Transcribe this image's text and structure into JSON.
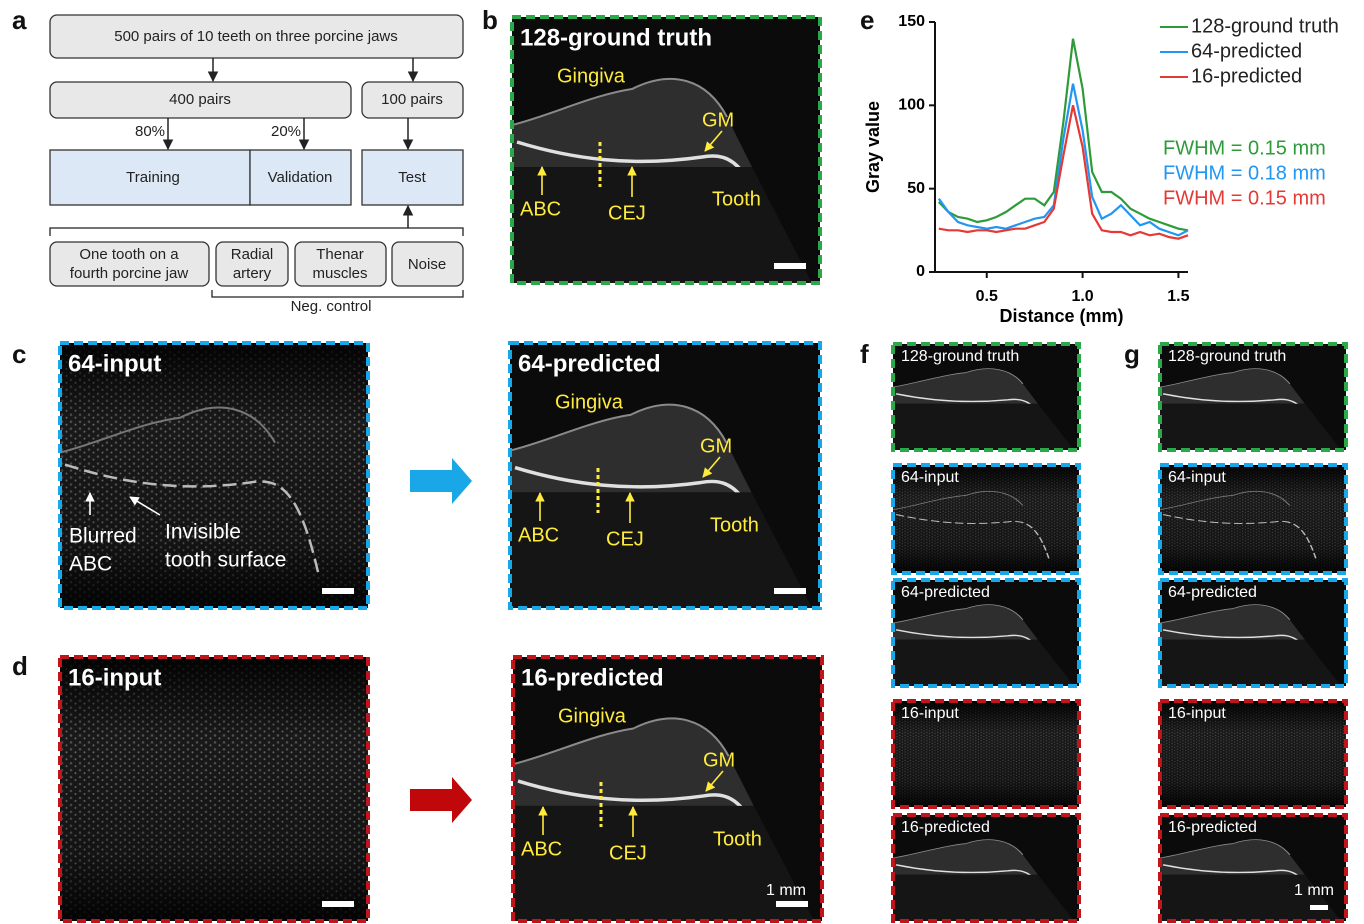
{
  "panel_labels": [
    "a",
    "b",
    "c",
    "d",
    "e",
    "f",
    "g"
  ],
  "flowchart": {
    "dataset": "500 pairs of 10 teeth on three porcine jaws",
    "train_pool": "400 pairs",
    "test_pool": "100 pairs",
    "train_share": "80%",
    "val_share": "20%",
    "training": "Training",
    "validation": "Validation",
    "test": "Test",
    "test_sources": [
      [
        "One tooth on a",
        "fourth porcine jaw"
      ],
      [
        "Radial",
        "artery"
      ],
      [
        "Thenar",
        "muscles"
      ],
      [
        "Noise"
      ]
    ],
    "neg_control": "Neg. control"
  },
  "panels": {
    "b": {
      "title": "128-ground truth",
      "annotations": [
        "Gingiva",
        "GM",
        "ABC",
        "CEJ",
        "Tooth"
      ]
    },
    "c_input": {
      "title": "64-input",
      "annotations": [
        [
          "Blurred",
          "ABC"
        ],
        [
          "Invisible",
          "tooth surface"
        ]
      ]
    },
    "c_predicted": {
      "title": "64-predicted",
      "annotations": [
        "Gingiva",
        "GM",
        "ABC",
        "CEJ",
        "Tooth"
      ]
    },
    "d_input": {
      "title": "16-input"
    },
    "d_predicted": {
      "title": "16-predicted",
      "annotations": [
        "Gingiva",
        "GM",
        "ABC",
        "CEJ",
        "Tooth"
      ],
      "scale_bar": "1 mm"
    },
    "f": {
      "titles": [
        "128-ground truth",
        "64-input",
        "64-predicted",
        "16-input",
        "16-predicted"
      ]
    },
    "g": {
      "titles": [
        "128-ground truth",
        "64-input",
        "64-predicted",
        "16-input",
        "16-predicted"
      ],
      "scale_bar": "1 mm"
    }
  },
  "chart_data": {
    "type": "line",
    "x_label": "Distance (mm)",
    "y_label": "Gray value",
    "x": [
      0.25,
      0.3,
      0.35,
      0.4,
      0.45,
      0.5,
      0.55,
      0.6,
      0.65,
      0.7,
      0.75,
      0.8,
      0.85,
      0.9,
      0.95,
      1.0,
      1.05,
      1.1,
      1.15,
      1.2,
      1.25,
      1.3,
      1.35,
      1.4,
      1.45,
      1.5,
      1.55
    ],
    "series": [
      {
        "name": "128-ground truth",
        "color": "#2e9b3a",
        "values": [
          42,
          36,
          33,
          32,
          30,
          31,
          33,
          36,
          40,
          44,
          44,
          40,
          48,
          90,
          140,
          110,
          60,
          48,
          48,
          44,
          38,
          35,
          32,
          30,
          28,
          26,
          25
        ]
      },
      {
        "name": "64-predicted",
        "color": "#2196f3",
        "values": [
          44,
          36,
          30,
          28,
          27,
          26,
          27,
          26,
          28,
          30,
          32,
          33,
          40,
          80,
          113,
          85,
          45,
          32,
          35,
          40,
          34,
          28,
          30,
          26,
          24,
          22,
          25
        ]
      },
      {
        "name": "16-predicted",
        "color": "#e53935",
        "values": [
          26,
          25,
          25,
          24,
          25,
          25,
          24,
          25,
          26,
          26,
          28,
          30,
          38,
          70,
          100,
          75,
          35,
          25,
          24,
          24,
          22,
          24,
          22,
          23,
          21,
          20,
          22
        ]
      }
    ],
    "xlim": [
      0.23,
      1.55
    ],
    "ylim": [
      0,
      150
    ],
    "xticks": [
      0.5,
      {
        "value": 1,
        "label": "1.0"
      },
      1.5
    ],
    "yticks": [
      0,
      50,
      100,
      150
    ],
    "grid": false,
    "legend": "upper right",
    "annotations": [
      {
        "text": "FWHM = 0.15 mm",
        "color": "#2e9b3a"
      },
      {
        "text": "FWHM = 0.18 mm",
        "color": "#2196f3"
      },
      {
        "text": "FWHM = 0.15 mm",
        "color": "#e53935"
      }
    ]
  }
}
